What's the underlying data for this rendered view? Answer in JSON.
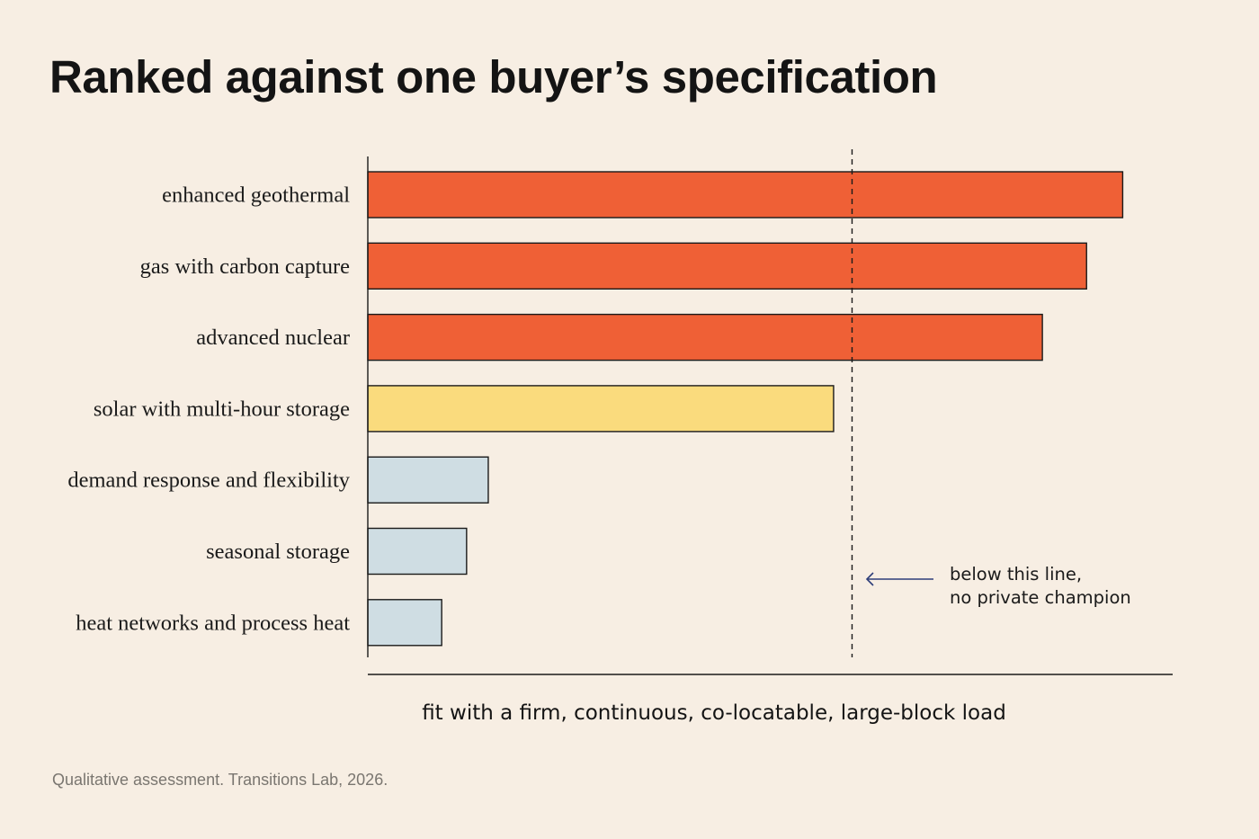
{
  "title": "Ranked against one buyer’s specification",
  "source_note": "Qualitative assessment. Transitions Lab, 2026.",
  "colors": {
    "background": "#f7eee3",
    "high_fit": "#ef6036",
    "medium_fit": "#fadb7d",
    "low_fit": "#cfdde3",
    "outline": "#1a1a1a",
    "arrow": "#2e3f7a"
  },
  "chart_data": {
    "type": "bar",
    "orientation": "horizontal",
    "title": "Ranked against one buyer’s specification",
    "xlabel": "fit with a firm, continuous, co-locatable, large-block load",
    "ylabel": "",
    "xlim": [
      0,
      100
    ],
    "tick_labels_shown": false,
    "grid": false,
    "categories": [
      "enhanced geothermal",
      "gas with carbon capture",
      "advanced nuclear",
      "solar with multi-hour storage",
      "demand response and flexibility",
      "seasonal storage",
      "heat networks and process heat"
    ],
    "values": [
      94,
      89.5,
      84,
      58,
      15,
      12.3,
      9.2
    ],
    "tiers": [
      "high",
      "high",
      "high",
      "medium",
      "low",
      "low",
      "low"
    ],
    "threshold": {
      "value": 60.3,
      "style": "dashed",
      "annotation": [
        "below this line,",
        "no private champion"
      ]
    }
  }
}
